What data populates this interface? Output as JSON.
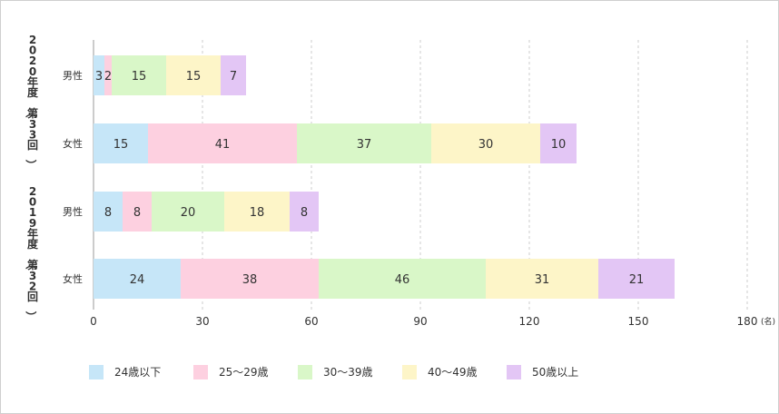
{
  "chart_data": {
    "type": "bar",
    "orientation": "horizontal",
    "stacked": true,
    "groups": [
      {
        "label": "2020年度（第33回）",
        "rows": [
          "男性",
          "女性"
        ]
      },
      {
        "label": "2019年度（第32回）",
        "rows": [
          "男性",
          "女性"
        ]
      }
    ],
    "categories": [
      "男性",
      "女性",
      "男性",
      "女性"
    ],
    "series": [
      {
        "name": "24歳以下",
        "color": "#c6e6f8",
        "values": [
          3,
          15,
          8,
          24
        ]
      },
      {
        "name": "25〜29歳",
        "color": "#fdd0e0",
        "values": [
          2,
          41,
          8,
          38
        ]
      },
      {
        "name": "30〜39歳",
        "color": "#d9f7c8",
        "values": [
          15,
          37,
          20,
          46
        ]
      },
      {
        "name": "40〜49歳",
        "color": "#fdf5c8",
        "values": [
          15,
          30,
          18,
          31
        ]
      },
      {
        "name": "50歳以上",
        "color": "#e3c6f5",
        "values": [
          7,
          10,
          8,
          21
        ]
      }
    ],
    "xlim": [
      0,
      180
    ],
    "xticks": [
      0,
      30,
      60,
      90,
      120,
      150,
      180
    ],
    "unit": "(名)",
    "grid": true,
    "legend": "bottom"
  }
}
